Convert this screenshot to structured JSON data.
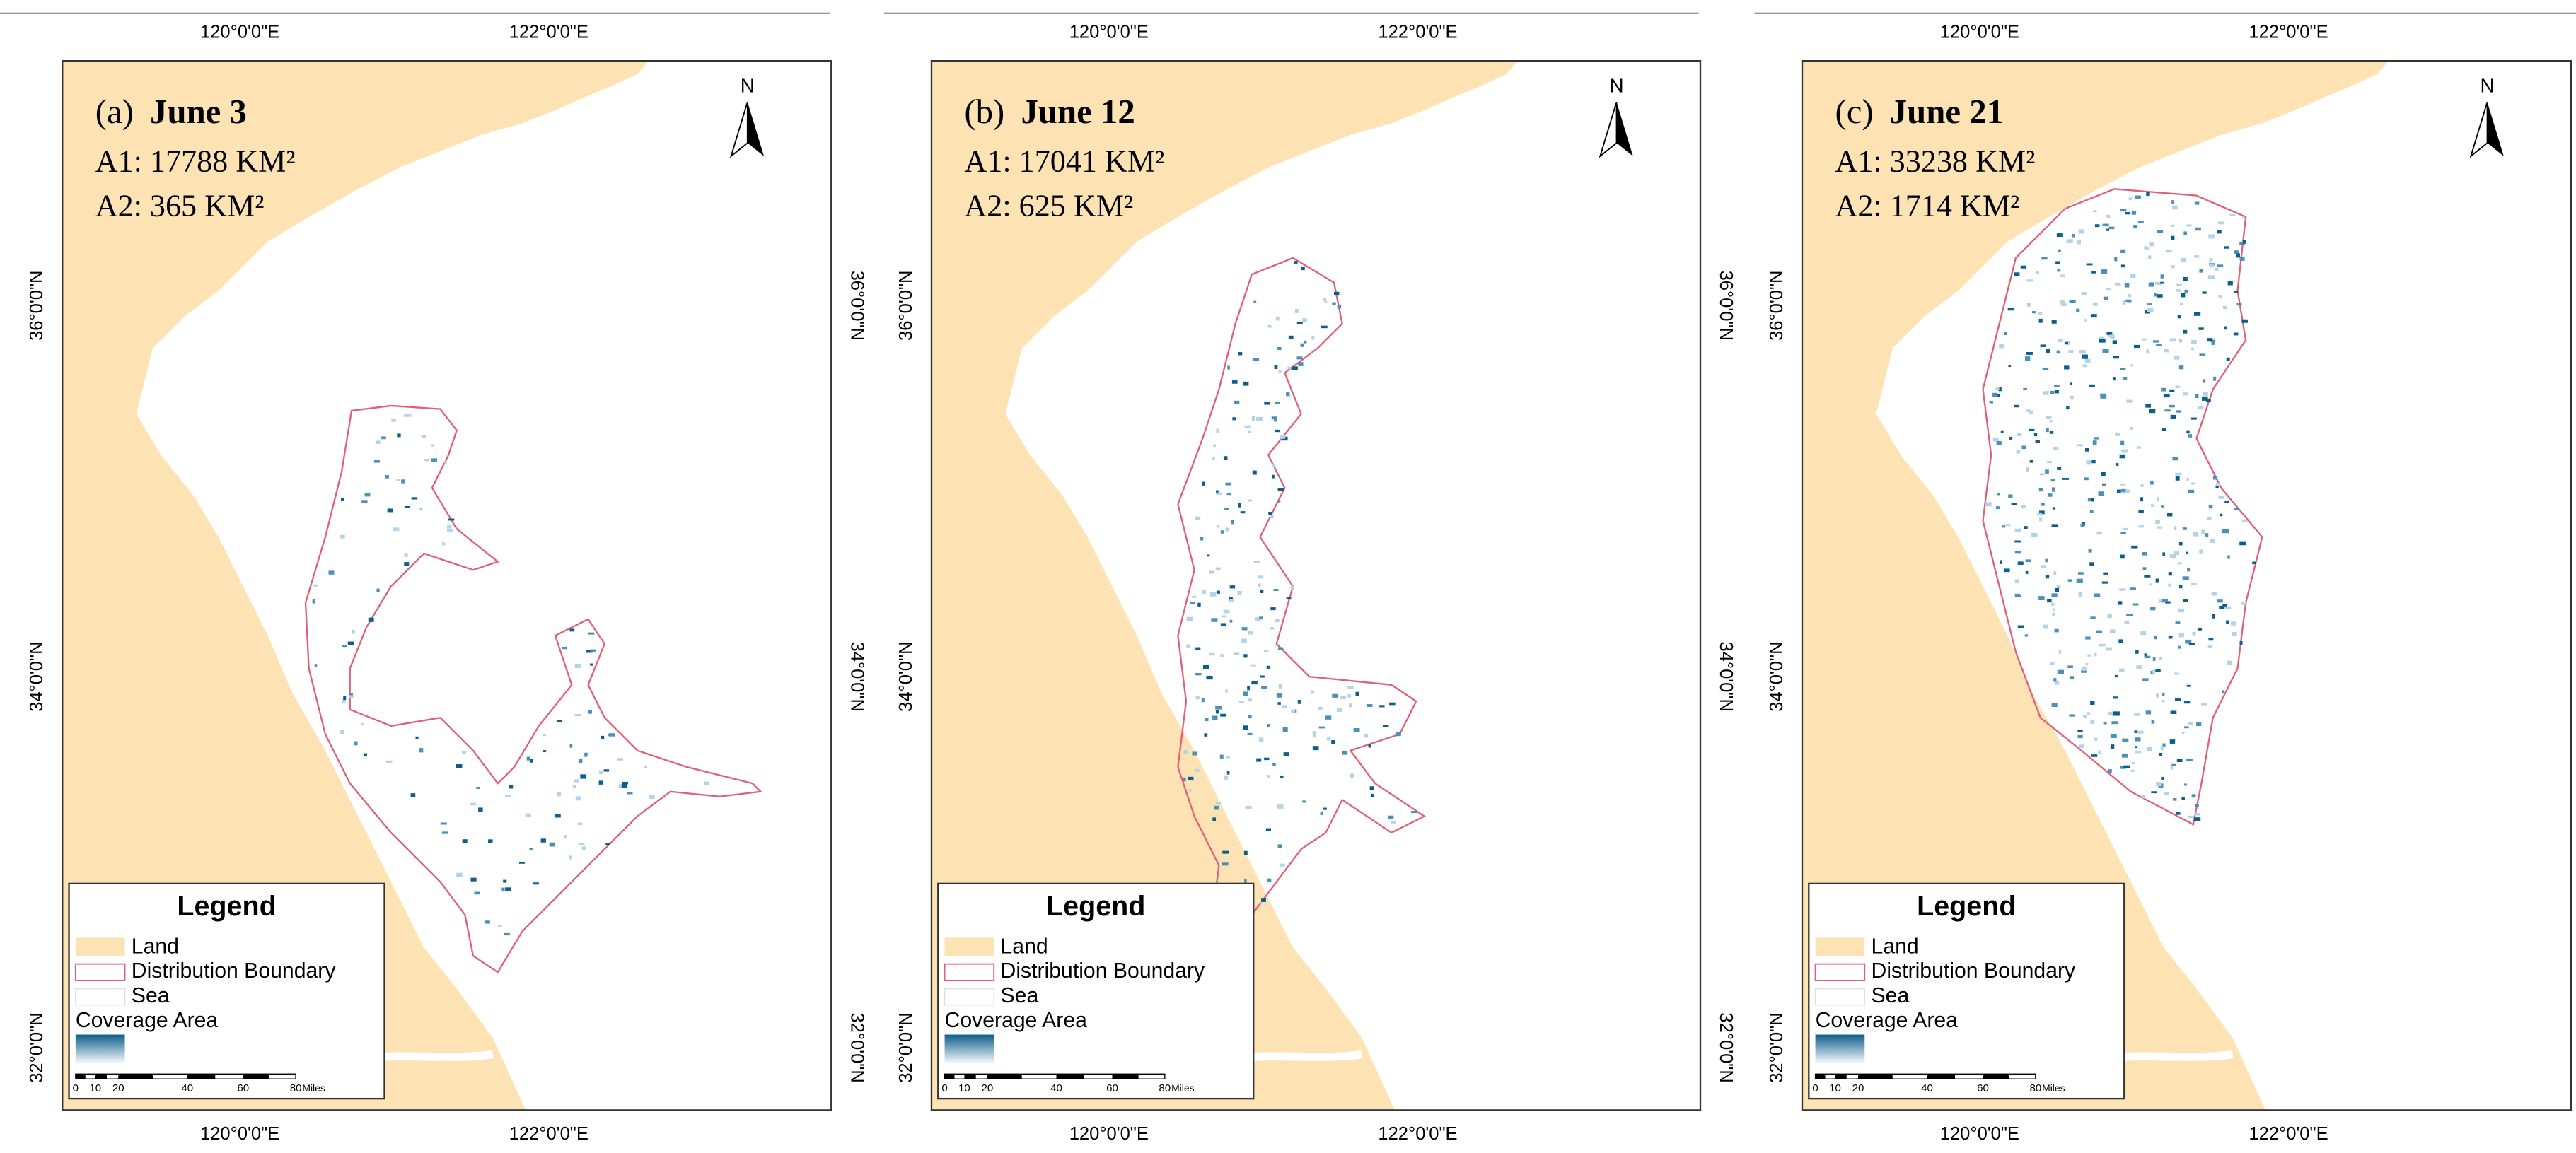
{
  "panels": [
    {
      "label": "(a)",
      "date": "June 3",
      "a1": "A1: 17788 KM²",
      "a2": "A2: 365 KM²"
    },
    {
      "label": "(b)",
      "date": "June 12",
      "a1": "A1: 17041 KM²",
      "a2": "A2: 625 KM²"
    },
    {
      "label": "(c)",
      "date": "June 21",
      "a1": "A1: 33238 KM²",
      "a2": "A2: 1714 KM²"
    }
  ],
  "north": "N",
  "x_labels": [
    "120°0'0\"E",
    "122°0'0\"E"
  ],
  "y_labels": [
    "36°0'0\"N",
    "34°0'0\"N",
    "32°0'0\"N"
  ],
  "legend": {
    "title": "Legend",
    "items": [
      "Land",
      "Distribution Boundary",
      "Sea",
      "Coverage Area"
    ],
    "scale_ticks": [
      "0",
      "10",
      "20",
      "40",
      "60",
      "80"
    ],
    "scale_unit": "Miles"
  }
}
